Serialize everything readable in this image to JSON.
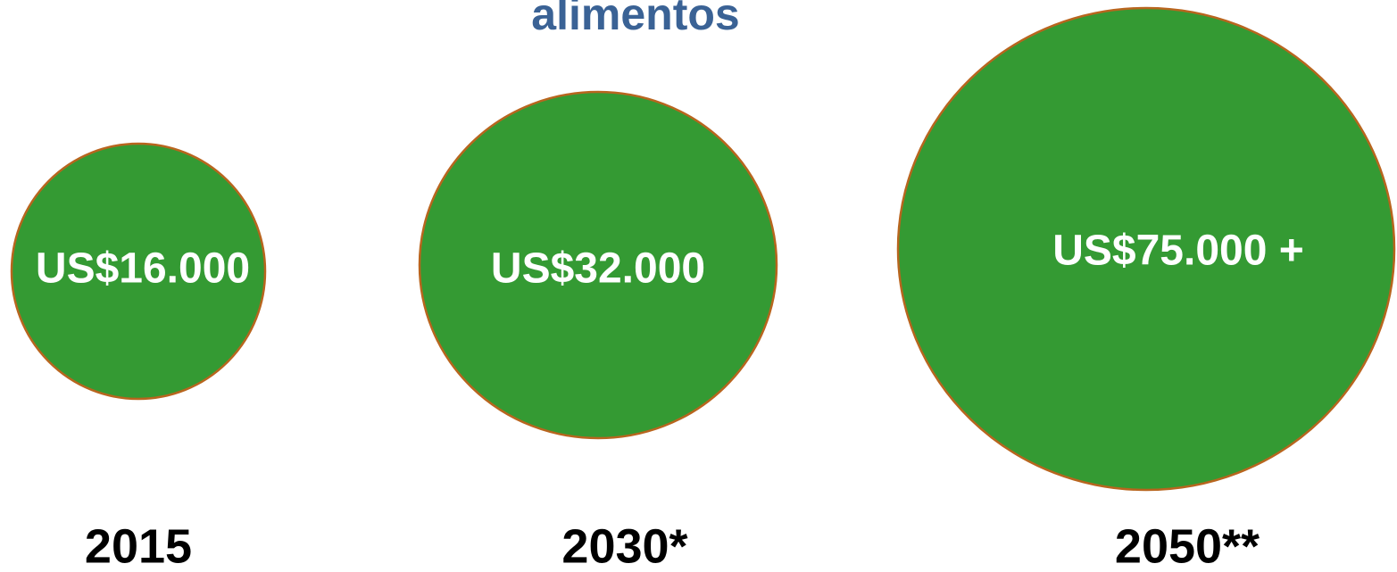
{
  "header": {
    "title": "alimentos"
  },
  "nodes": [
    {
      "label": "US$16.000",
      "year": "2015"
    },
    {
      "label": "US$32.000",
      "year": "2030*"
    },
    {
      "label": "US$75.000 +",
      "year": "2050**"
    }
  ]
}
